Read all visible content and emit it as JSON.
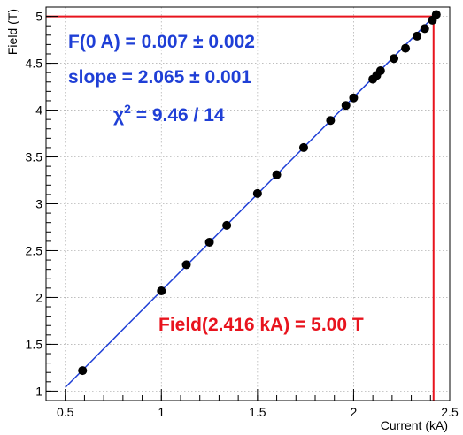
{
  "chart_data": {
    "type": "scatter",
    "xlabel": "Current (kA)",
    "ylabel": "Field (T)",
    "xlim": [
      0.4,
      2.5
    ],
    "ylim": [
      0.9,
      5.1
    ],
    "x_ticks": [
      "0.5",
      "1",
      "1.5",
      "2",
      "2.5"
    ],
    "y_ticks": [
      "1",
      "1.5",
      "2",
      "2.5",
      "3",
      "3.5",
      "4",
      "4.5",
      "5"
    ],
    "grid": true,
    "series": [
      {
        "marker": "circle",
        "color": "#000000",
        "points": [
          [
            0.59,
            1.22
          ],
          [
            1.0,
            2.07
          ],
          [
            1.13,
            2.35
          ],
          [
            1.25,
            2.59
          ],
          [
            1.34,
            2.77
          ],
          [
            1.5,
            3.11
          ],
          [
            1.6,
            3.31
          ],
          [
            1.74,
            3.6
          ],
          [
            1.88,
            3.89
          ],
          [
            1.96,
            4.05
          ],
          [
            2.0,
            4.13
          ],
          [
            2.1,
            4.33
          ],
          [
            2.12,
            4.37
          ],
          [
            2.14,
            4.42
          ],
          [
            2.21,
            4.55
          ],
          [
            2.27,
            4.66
          ],
          [
            2.33,
            4.79
          ],
          [
            2.37,
            4.87
          ],
          [
            2.41,
            4.96
          ],
          [
            2.43,
            5.02
          ]
        ]
      }
    ],
    "fit": {
      "intercept": 0.007,
      "slope": 2.065,
      "x_range": [
        0.5,
        2.43
      ],
      "color": "#1f3fd6",
      "texts": {
        "intercept": "F(0 A) = 0.007 ± 0.002",
        "slope": "slope =  2.065 ± 0.001",
        "chi2_symbol": "χ",
        "chi2_exp": "2",
        "chi2_value": " = 9.46 / 14"
      }
    },
    "reference": {
      "x": 2.416,
      "y": 5.0,
      "color": "#e8141e",
      "label": "Field(2.416 kA) = 5.00 T"
    }
  }
}
